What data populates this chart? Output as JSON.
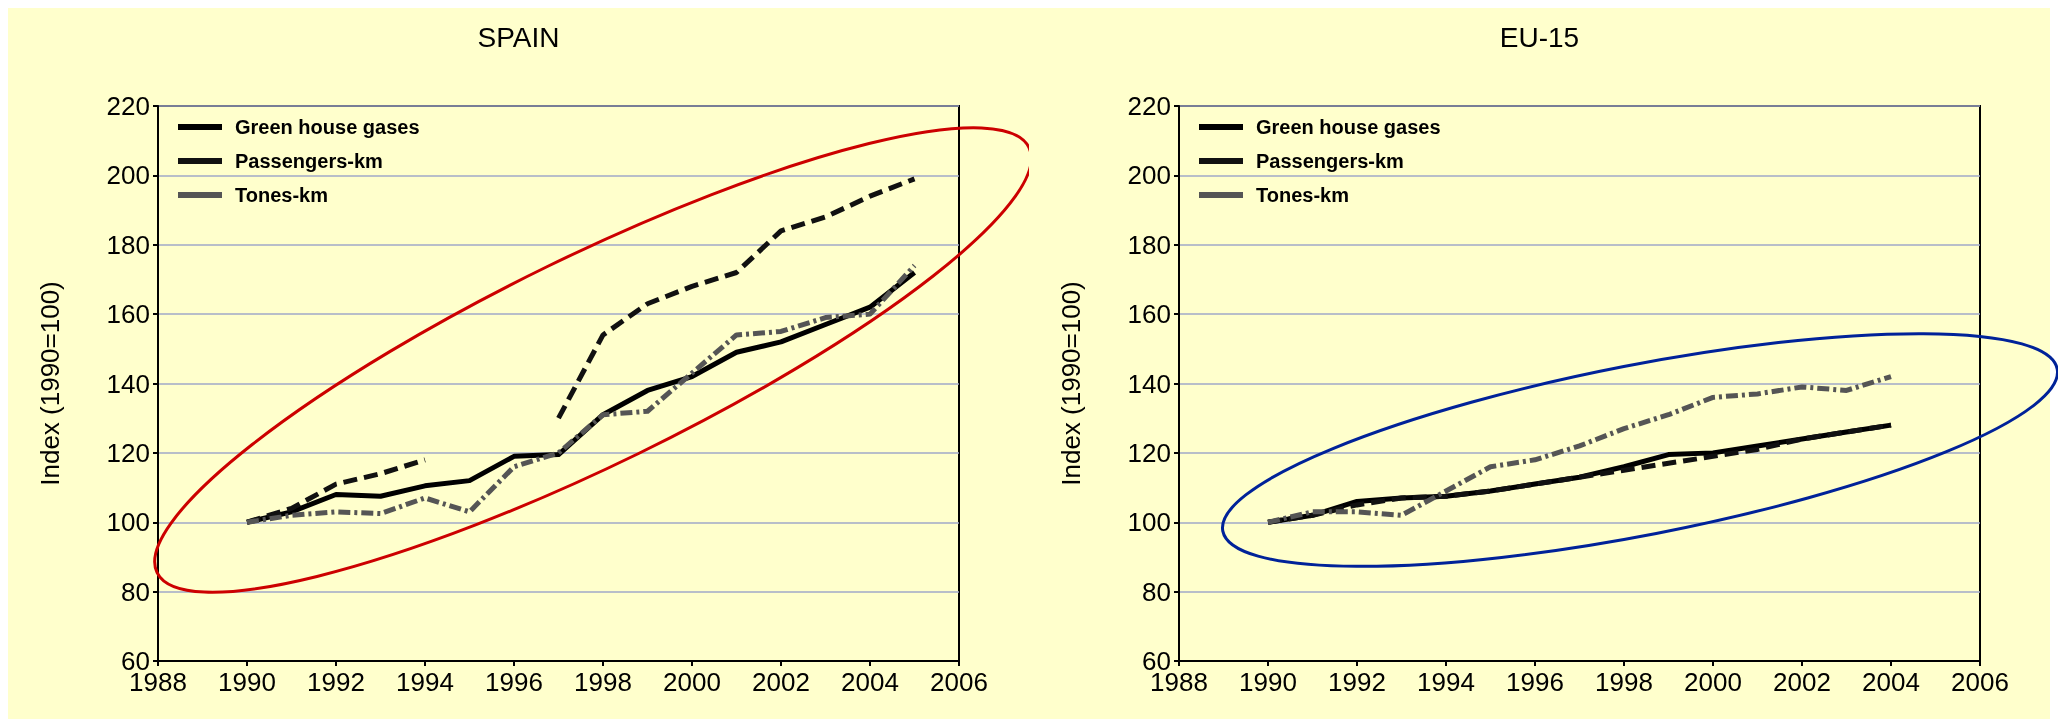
{
  "chart_data": [
    {
      "type": "line",
      "title": "SPAIN",
      "ylabel": "Index (1990=100)",
      "x": [
        1990,
        1991,
        1992,
        1993,
        1994,
        1995,
        1996,
        1997,
        1998,
        1999,
        2000,
        2001,
        2002,
        2003,
        2004,
        2005
      ],
      "xlim": [
        1988,
        2006
      ],
      "xticks": [
        1988,
        1990,
        1992,
        1994,
        1996,
        1998,
        2000,
        2002,
        2004,
        2006
      ],
      "ylim": [
        60,
        220
      ],
      "yticks": [
        60,
        80,
        100,
        120,
        140,
        160,
        180,
        200,
        220
      ],
      "grid": "y",
      "legend": "top left",
      "marker": "none",
      "series": [
        {
          "name": "Green house gases",
          "color": "#000000",
          "line_style": "solid",
          "values": [
            100,
            103,
            108,
            107.5,
            110.5,
            112,
            119,
            119.5,
            131,
            138,
            142,
            149,
            152,
            157,
            162,
            172
          ]
        },
        {
          "name": "Passengers-km",
          "color": "#111111",
          "line_style": "dashed",
          "values": [
            100,
            104,
            111,
            114,
            118,
            null,
            null,
            130,
            154,
            163,
            168,
            172,
            184,
            188,
            194,
            199
          ]
        },
        {
          "name": "Tones-km",
          "color": "#555555",
          "line_style": "dotted",
          "values": [
            100,
            102,
            103,
            102.5,
            107,
            103,
            116,
            120,
            131,
            132,
            143,
            154,
            155,
            159,
            160,
            174
          ]
        }
      ]
    },
    {
      "type": "line",
      "title": "EU-15",
      "ylabel": "Index (1990=100)",
      "x": [
        1990,
        1991,
        1992,
        1993,
        1994,
        1995,
        1996,
        1997,
        1998,
        1999,
        2000,
        2001,
        2002,
        2003,
        2004
      ],
      "xlim": [
        1988,
        2006
      ],
      "xticks": [
        1988,
        1990,
        1992,
        1994,
        1996,
        1998,
        2000,
        2002,
        2004,
        2006
      ],
      "ylim": [
        60,
        220
      ],
      "yticks": [
        60,
        80,
        100,
        120,
        140,
        160,
        180,
        200,
        220
      ],
      "grid": "y",
      "legend": "top left",
      "marker": "none",
      "series": [
        {
          "name": "Green house gases",
          "color": "#000000",
          "line_style": "solid",
          "values": [
            100,
            102,
            106,
            107,
            107.5,
            109,
            111,
            113,
            116,
            119.5,
            120,
            122,
            124,
            126,
            128
          ]
        },
        {
          "name": "Passengers-km",
          "color": "#111111",
          "line_style": "dashed",
          "values": [
            100,
            102,
            105,
            107,
            107.5,
            109,
            111,
            113,
            115,
            117,
            119,
            121,
            124,
            126,
            128
          ]
        },
        {
          "name": "Tones-km",
          "color": "#555555",
          "line_style": "dotted",
          "values": [
            100,
            103,
            103,
            102,
            109,
            116,
            118,
            122,
            127,
            131,
            136,
            137,
            139,
            138,
            142
          ]
        }
      ]
    }
  ]
}
